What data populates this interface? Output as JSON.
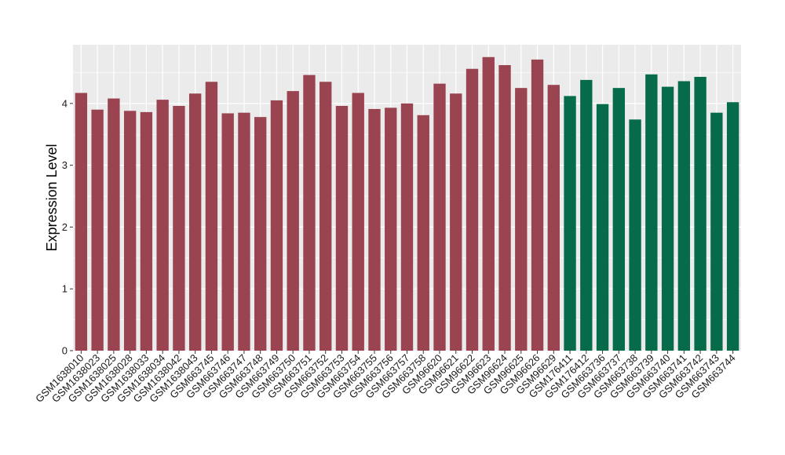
{
  "chart_data": {
    "type": "bar",
    "title": "",
    "xlabel": "",
    "ylabel": "Expression Level",
    "ylim": [
      0,
      4.95
    ],
    "yticks": [
      0,
      1,
      2,
      3,
      4
    ],
    "grid": true,
    "legend": "none",
    "colors": {
      "panel_background": "#ebebeb",
      "grid_major": "#ffffff",
      "series_red": "#9b4451",
      "series_green": "#066b4a"
    },
    "categories": [
      "GSM1638010",
      "GSM1638023",
      "GSM1638025",
      "GSM1638028",
      "GSM1638033",
      "GSM1638034",
      "GSM1638042",
      "GSM1638043",
      "GSM663745",
      "GSM663746",
      "GSM663747",
      "GSM663748",
      "GSM663749",
      "GSM663750",
      "GSM663751",
      "GSM663752",
      "GSM663753",
      "GSM663754",
      "GSM663755",
      "GSM663756",
      "GSM663757",
      "GSM663758",
      "GSM96620",
      "GSM96621",
      "GSM96622",
      "GSM96623",
      "GSM96624",
      "GSM96625",
      "GSM96626",
      "GSM96629",
      "GSM176411",
      "GSM176412",
      "GSM663736",
      "GSM663737",
      "GSM663738",
      "GSM663739",
      "GSM663740",
      "GSM663741",
      "GSM663742",
      "GSM663743",
      "GSM663744"
    ],
    "values": [
      4.17,
      3.9,
      4.08,
      3.88,
      3.86,
      4.06,
      3.96,
      4.16,
      4.35,
      3.84,
      3.85,
      3.78,
      4.05,
      4.2,
      4.46,
      4.35,
      3.96,
      4.17,
      3.91,
      3.93,
      4.0,
      3.81,
      4.32,
      4.16,
      4.56,
      4.75,
      4.62,
      4.25,
      4.71,
      4.3,
      4.12,
      4.38,
      3.99,
      4.25,
      3.74,
      4.47,
      4.27,
      4.36,
      4.43,
      3.85,
      4.02
    ],
    "bar_groups": [
      "red",
      "red",
      "red",
      "red",
      "red",
      "red",
      "red",
      "red",
      "red",
      "red",
      "red",
      "red",
      "red",
      "red",
      "red",
      "red",
      "red",
      "red",
      "red",
      "red",
      "red",
      "red",
      "red",
      "red",
      "red",
      "red",
      "red",
      "red",
      "red",
      "red",
      "green",
      "green",
      "green",
      "green",
      "green",
      "green",
      "green",
      "green",
      "green",
      "green",
      "green"
    ]
  }
}
